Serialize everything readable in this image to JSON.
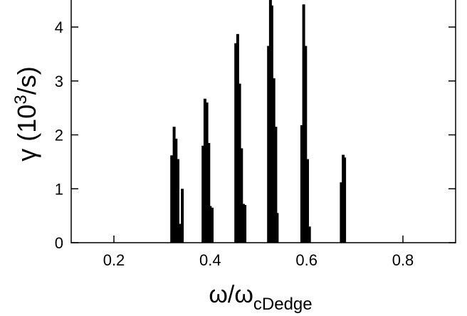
{
  "chart_data": {
    "type": "bar",
    "xlabel": {
      "main": "ω/ω",
      "sub": "cDedge"
    },
    "ylabel": {
      "pre": "γ (10",
      "sup": "3",
      "post": "/s)"
    },
    "xlim": [
      0.12,
      0.9
    ],
    "ylim": [
      0,
      4.6
    ],
    "xticks": [
      0.2,
      0.4,
      0.6,
      0.8
    ],
    "xtick_labels": [
      "0.2",
      "0.4",
      "0.6",
      "0.8"
    ],
    "yticks": [
      0,
      1,
      2,
      3,
      4
    ],
    "ytick_labels": [
      "0",
      "1",
      "2",
      "3",
      "4"
    ],
    "grid": false,
    "bar_color": "#000000",
    "x": [
      0.32,
      0.325,
      0.329,
      0.333,
      0.337,
      0.342,
      0.385,
      0.389,
      0.393,
      0.397,
      0.4,
      0.404,
      0.453,
      0.457,
      0.461,
      0.465,
      0.469,
      0.472,
      0.521,
      0.525,
      0.528,
      0.532,
      0.536,
      0.539,
      0.59,
      0.594,
      0.598,
      0.602,
      0.606,
      0.672,
      0.676,
      0.679
    ],
    "values": [
      1.62,
      2.15,
      1.93,
      1.55,
      0.35,
      1.0,
      1.8,
      2.67,
      2.6,
      1.85,
      0.68,
      0.65,
      3.7,
      3.87,
      2.95,
      1.75,
      0.72,
      0.7,
      3.65,
      4.6,
      4.4,
      3.05,
      2.15,
      0.55,
      2.18,
      4.42,
      3.65,
      1.55,
      0.3,
      1.12,
      1.63,
      1.58
    ]
  }
}
